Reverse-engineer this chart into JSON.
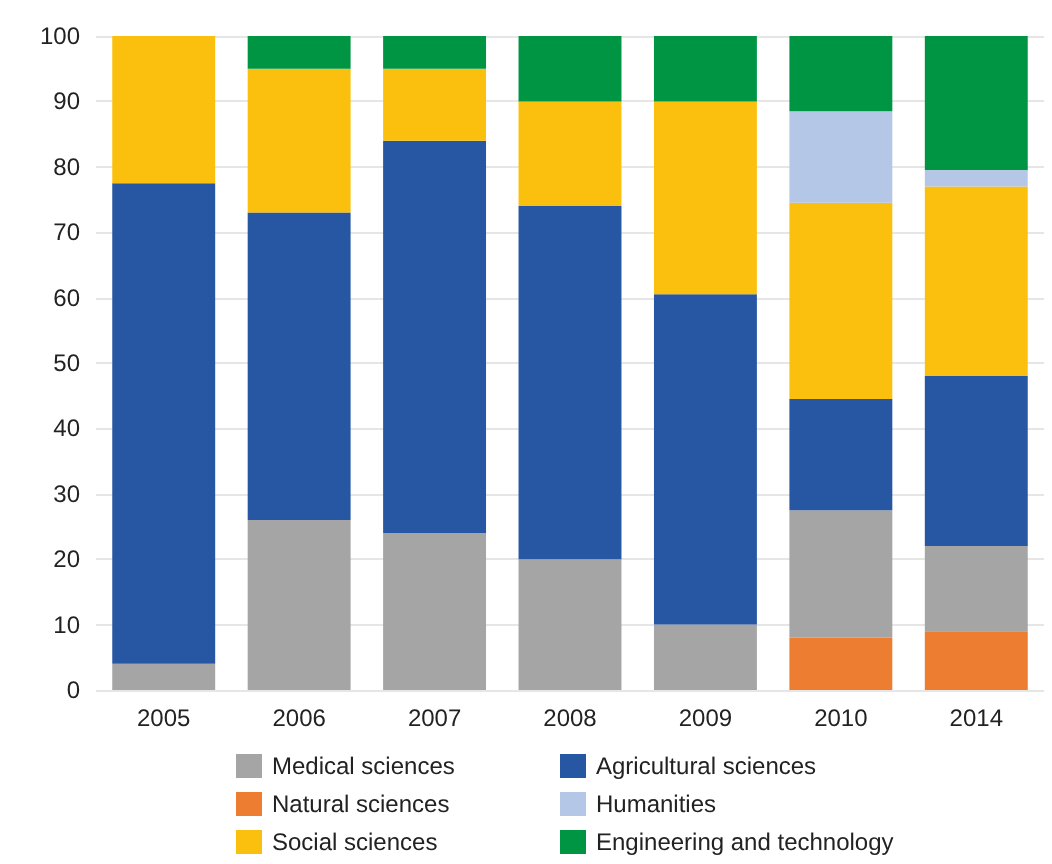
{
  "chart_data": {
    "type": "bar",
    "stacked": true,
    "categories": [
      "2005",
      "2006",
      "2007",
      "2008",
      "2009",
      "2010",
      "2014"
    ],
    "series": [
      {
        "name": "Natural sciences",
        "color": "#ed7d31",
        "values": [
          0,
          0,
          0,
          0,
          0,
          8,
          9
        ]
      },
      {
        "name": "Medical sciences",
        "color": "#a5a5a5",
        "values": [
          4,
          26,
          24,
          20,
          10,
          19.5,
          13
        ]
      },
      {
        "name": "Agricultural sciences",
        "color": "#2757a3",
        "values": [
          73.5,
          47,
          60,
          54,
          50.5,
          17,
          26
        ]
      },
      {
        "name": "Social sciences",
        "color": "#fbc00d",
        "values": [
          22.5,
          22,
          11,
          16,
          29.5,
          30,
          29
        ]
      },
      {
        "name": "Humanities",
        "color": "#b4c7e7",
        "values": [
          0,
          0,
          0,
          0,
          0,
          14,
          2.5
        ]
      },
      {
        "name": "Engineering and technology",
        "color": "#009543",
        "values": [
          0,
          5,
          5,
          10,
          10,
          11.5,
          20.5
        ]
      }
    ],
    "ylim": [
      0,
      100
    ],
    "yticks": [
      0,
      10,
      20,
      30,
      40,
      50,
      60,
      70,
      80,
      90,
      100
    ],
    "grid": "y",
    "legend": "bottom"
  }
}
